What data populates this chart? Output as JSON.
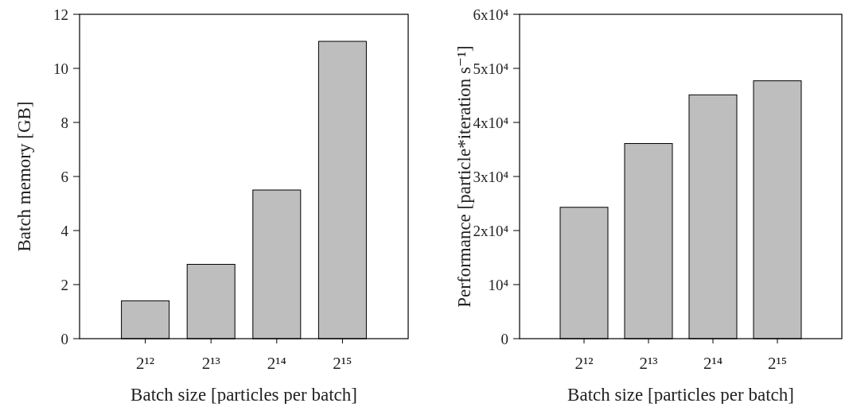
{
  "chart_data": [
    {
      "type": "bar",
      "xlabel": "Batch size [particles per batch]",
      "ylabel": "Batch memory [GB]",
      "categories": [
        "2¹²",
        "2¹³",
        "2¹⁴",
        "2¹⁵"
      ],
      "values": [
        1.4,
        2.75,
        5.5,
        11.0
      ],
      "color": "#bebebe",
      "ylim": [
        0,
        12
      ],
      "yticks": [
        0,
        2,
        4,
        6,
        8,
        10,
        12
      ]
    },
    {
      "type": "bar",
      "xlabel": "Batch size [particles per batch]",
      "ylabel": "Performance [particle*iteration s⁻¹]",
      "categories": [
        "2¹²",
        "2¹³",
        "2¹⁴",
        "2¹⁵"
      ],
      "values": [
        24300,
        36100,
        45100,
        47700
      ],
      "color": "#bebebe",
      "ylim": [
        0,
        60000
      ],
      "yticks": [
        0,
        {
          "value": 10000,
          "label": "10⁴"
        },
        {
          "value": 20000,
          "label": "2x10⁴"
        },
        {
          "value": 30000,
          "label": "3x10⁴"
        },
        {
          "value": 40000,
          "label": "4x10⁴"
        },
        {
          "value": 50000,
          "label": "5x10⁴"
        },
        {
          "value": 60000,
          "label": "6x10⁴"
        }
      ]
    }
  ]
}
